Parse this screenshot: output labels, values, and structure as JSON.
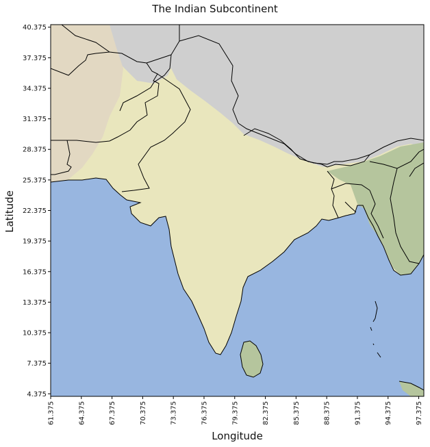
{
  "title": "The Indian Subcontinent",
  "xlabel": "Longitude",
  "ylabel": "Latitude",
  "x_ticks": [
    "61.375",
    "64.375",
    "67.375",
    "70.375",
    "73.375",
    "76.375",
    "79.375",
    "82.375",
    "85.375",
    "88.375",
    "91.375",
    "94.375",
    "97.375"
  ],
  "y_ticks": [
    "40.375",
    "37.375",
    "34.375",
    "31.375",
    "28.375",
    "25.375",
    "22.375",
    "19.375",
    "16.375",
    "13.375",
    "10.375",
    "7.375",
    "4.375"
  ],
  "extent": {
    "lon": [
      61.375,
      97.875
    ],
    "lat": [
      4.125,
      40.625
    ]
  },
  "colors": {
    "ocean": "#98b6e0",
    "desert": "#e2d8c2",
    "plains": "#e9e6bd",
    "mountains": "#cfcfcf",
    "forest": "#b5c59d",
    "border": "#000000"
  }
}
